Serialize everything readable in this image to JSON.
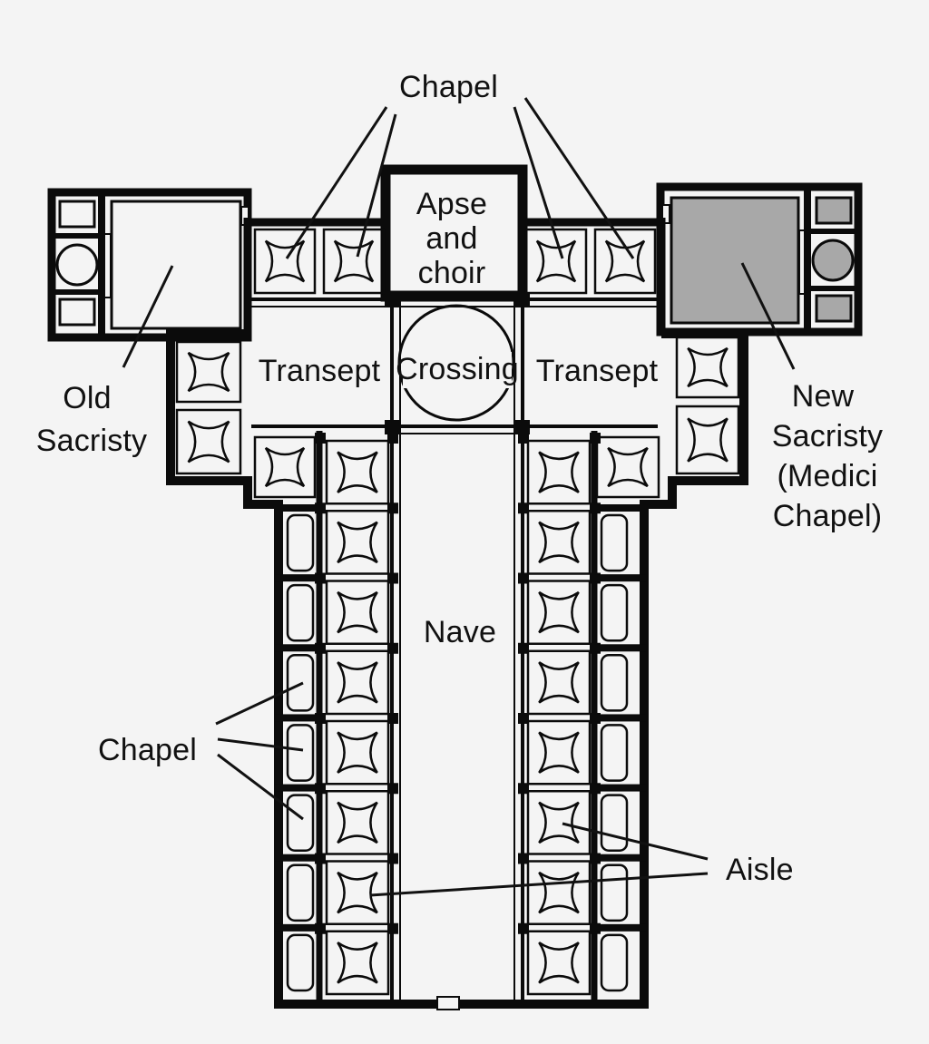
{
  "labels": {
    "chapel_top": "Chapel",
    "apse_line1": "Apse",
    "apse_line2": "and",
    "apse_line3": "choir",
    "transept_left": "Transept",
    "crossing": "Crossing",
    "transept_right": "Transept",
    "old_sacristy_line1": "Old",
    "old_sacristy_line2": "Sacristy",
    "new_sacristy_line1": "New",
    "new_sacristy_line2": "Sacristy",
    "new_sacristy_line3": "(Medici",
    "new_sacristy_line4": "Chapel)",
    "nave": "Nave",
    "chapel_side": "Chapel",
    "aisle": "Aisle"
  },
  "colors": {
    "walls": "#0b0b0b",
    "background": "#f4f4f4",
    "new_sacristy_fill": "#a8a8a8"
  }
}
